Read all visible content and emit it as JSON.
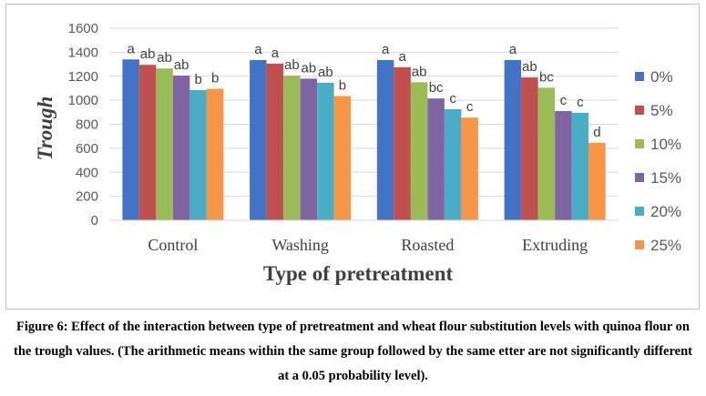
{
  "chart_data": {
    "type": "bar",
    "xlabel": "Type of pretreatment",
    "ylabel": "Trough",
    "ylim": [
      0,
      1600
    ],
    "yticks": [
      0,
      200,
      400,
      600,
      800,
      1000,
      1200,
      1400,
      1600
    ],
    "grid": true,
    "legend_position": "right",
    "categories": [
      "Control",
      "Washing",
      "Roasted",
      "Extruding"
    ],
    "series": [
      {
        "name": "0%",
        "color": "#4472c4",
        "values": [
          1340,
          1335,
          1335,
          1335
        ],
        "labels": [
          "a",
          "a",
          "a",
          "a"
        ]
      },
      {
        "name": "5%",
        "color": "#c0504d",
        "values": [
          1295,
          1305,
          1275,
          1190
        ],
        "labels": [
          "ab",
          "a",
          "a",
          "ab"
        ]
      },
      {
        "name": "10%",
        "color": "#9bbb59",
        "values": [
          1265,
          1205,
          1150,
          1105
        ],
        "labels": [
          "ab",
          "ab",
          "ab",
          "bc"
        ]
      },
      {
        "name": "15%",
        "color": "#8064a2",
        "values": [
          1205,
          1180,
          1015,
          910
        ],
        "labels": [
          "ab",
          "ab",
          "bc",
          "c"
        ]
      },
      {
        "name": "20%",
        "color": "#4bacc6",
        "values": [
          1085,
          1145,
          925,
          895
        ],
        "labels": [
          "b",
          "ab",
          "c",
          "c"
        ]
      },
      {
        "name": "25%",
        "color": "#f79646",
        "values": [
          1095,
          1035,
          855,
          645
        ],
        "labels": [
          "b",
          "b",
          "c",
          "d"
        ]
      }
    ]
  },
  "caption": {
    "text": "Figure 6: Effect of the interaction between type of pretreatment and wheat flour substitution levels with quinoa flour on the trough values. (The arithmetic means within the same group followed by the same etter are not significantly different at a 0.05 probability level)."
  }
}
